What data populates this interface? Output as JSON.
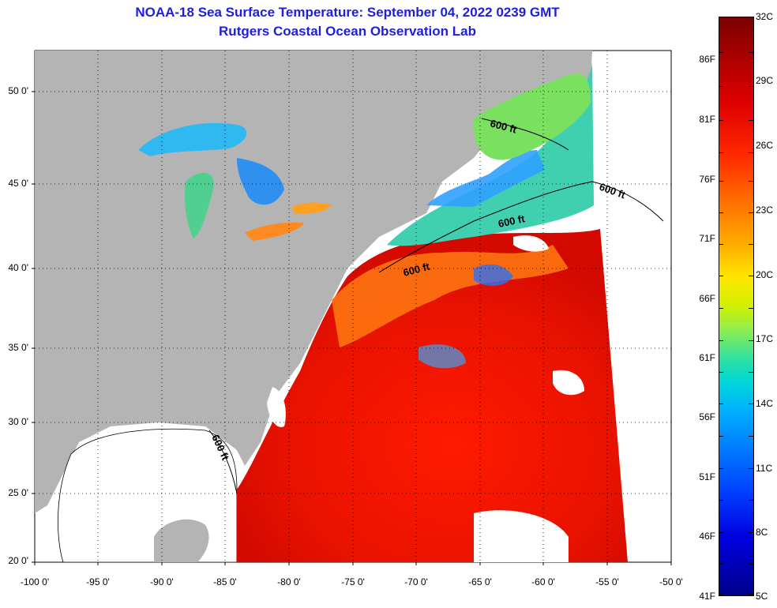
{
  "title": {
    "line1": "NOAA-18 Sea Surface Temperature:  September 04, 2022 0239 GMT",
    "line2": "Rutgers Coastal Ocean Observation Lab"
  },
  "axes": {
    "lat_labels": [
      "50 0'",
      "45 0'",
      "40 0'",
      "35 0'",
      "30 0'",
      "25 0'",
      "20 0'"
    ],
    "lon_labels": [
      "-100 0'",
      "-95 0'",
      "-90 0'",
      "-85 0'",
      "-80 0'",
      "-75 0'",
      "-70 0'",
      "-65 0'",
      "-60 0'",
      "-55 0'",
      "-50 0'"
    ]
  },
  "contour_labels": [
    "600 ft",
    "600 ft",
    "600 ft",
    "600 ft",
    "600 ft"
  ],
  "colorbar": {
    "fahrenheit": [
      "86F",
      "81F",
      "76F",
      "71F",
      "66F",
      "61F",
      "56F",
      "51F",
      "46F",
      "41F"
    ],
    "celsius": [
      "32C",
      "29C",
      "26C",
      "23C",
      "20C",
      "17C",
      "14C",
      "11C",
      "8C",
      "5C"
    ]
  },
  "colors": {
    "title": "#1e1edc",
    "land": "#b4b4b4",
    "no_data": "#ffffff",
    "warm": "#e01000",
    "cool": "#30c0e0"
  }
}
